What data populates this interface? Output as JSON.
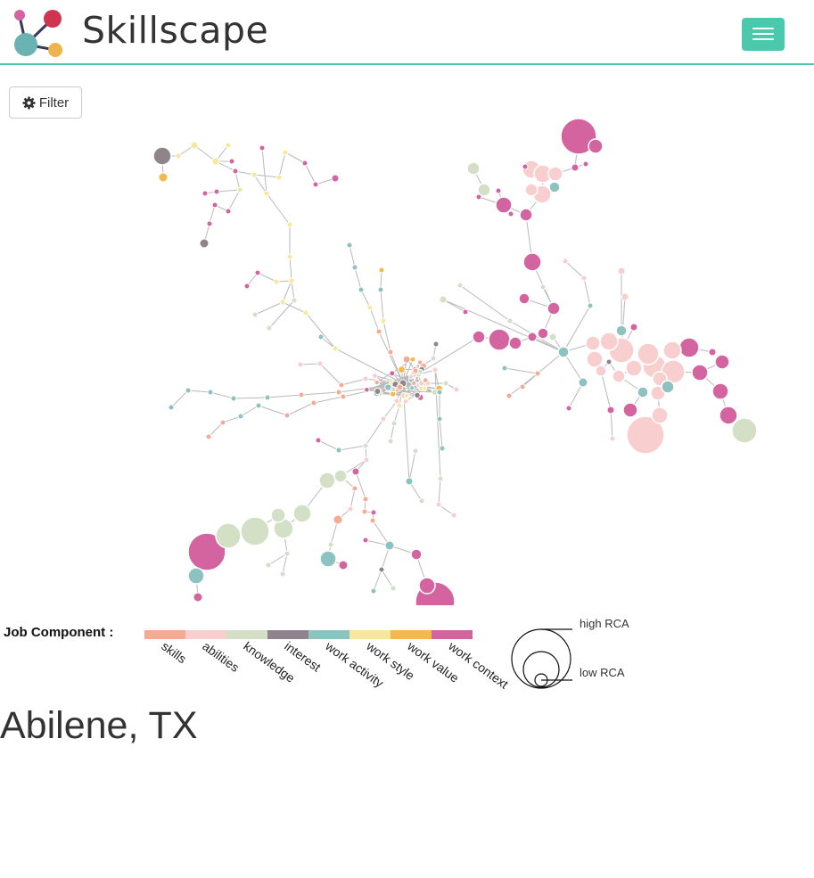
{
  "navbar": {
    "brand": "Skillscape",
    "menu_button_icon": "hamburger-icon"
  },
  "toolbar": {
    "filter_label": "Filter",
    "filter_icon": "gear-icon"
  },
  "legend": {
    "title": "Job Component :",
    "categories": [
      {
        "label": "skills",
        "color": "#f4ab92"
      },
      {
        "label": "abilities",
        "color": "#f9cece"
      },
      {
        "label": "knowledge",
        "color": "#d3e0c6"
      },
      {
        "label": "interest",
        "color": "#8f838c"
      },
      {
        "label": "work activity",
        "color": "#8cc2c0"
      },
      {
        "label": "work style",
        "color": "#f8e89f"
      },
      {
        "label": "work value",
        "color": "#f5b84a"
      },
      {
        "label": "work context",
        "color": "#d4649f"
      }
    ],
    "size_high_label": "high RCA",
    "size_low_label": "low RCA"
  },
  "city": "Abilene, TX"
}
